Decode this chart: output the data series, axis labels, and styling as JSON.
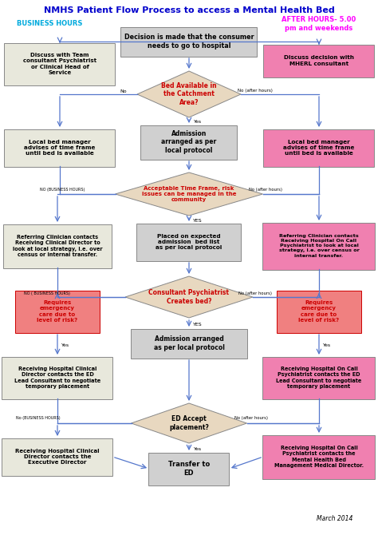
{
  "title": "NMHS Patient Flow Process to access a Mental Health Bed",
  "title_color": "#0000CC",
  "bg_color": "#FFFFFF",
  "business_hours_label": "BUSINESS HOURS",
  "bh_color": "#00AADD",
  "after_hours_label": "AFTER HOURS- 5.00\npm and weekends",
  "ah_color": "#FF00FF",
  "march_label": "March 2014",
  "arrow_color": "#5577CC",
  "rect_border": "#888888",
  "left_bg": "#E8E8DC",
  "right_bg": "#F080B0",
  "center_bg": "#D0D0D0",
  "diamond_bg": "#E8D8C0",
  "requires_bg": "#F08080",
  "red_text": "#CC0000"
}
